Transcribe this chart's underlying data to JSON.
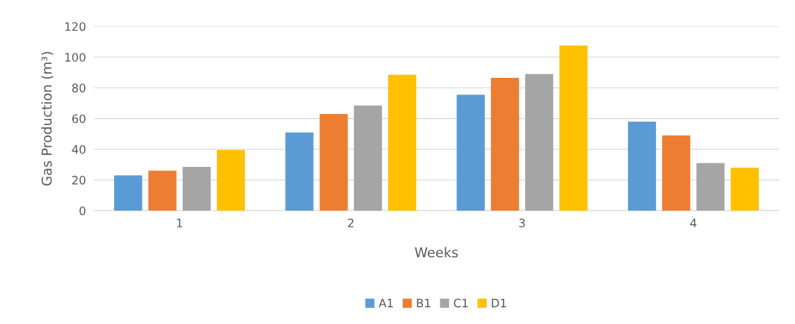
{
  "chart_data": {
    "type": "bar",
    "xlabel": "Weeks",
    "ylabel": "Gas Production (m³)",
    "categories": [
      "1",
      "2",
      "3",
      "4"
    ],
    "series": [
      {
        "name": "A1",
        "color": "#5b9bd5",
        "values": [
          23,
          51,
          75.5,
          58
        ]
      },
      {
        "name": "B1",
        "color": "#ed7d31",
        "values": [
          26,
          63,
          86.5,
          49
        ]
      },
      {
        "name": "C1",
        "color": "#a5a5a5",
        "values": [
          28.5,
          68.5,
          89,
          31
        ]
      },
      {
        "name": "D1",
        "color": "#ffc000",
        "values": [
          39.5,
          88.5,
          107.5,
          28
        ]
      }
    ],
    "ylim": [
      0,
      120
    ],
    "yticks": [
      0,
      20,
      40,
      60,
      80,
      100,
      120
    ],
    "grid": "y",
    "legend": "bottom"
  }
}
